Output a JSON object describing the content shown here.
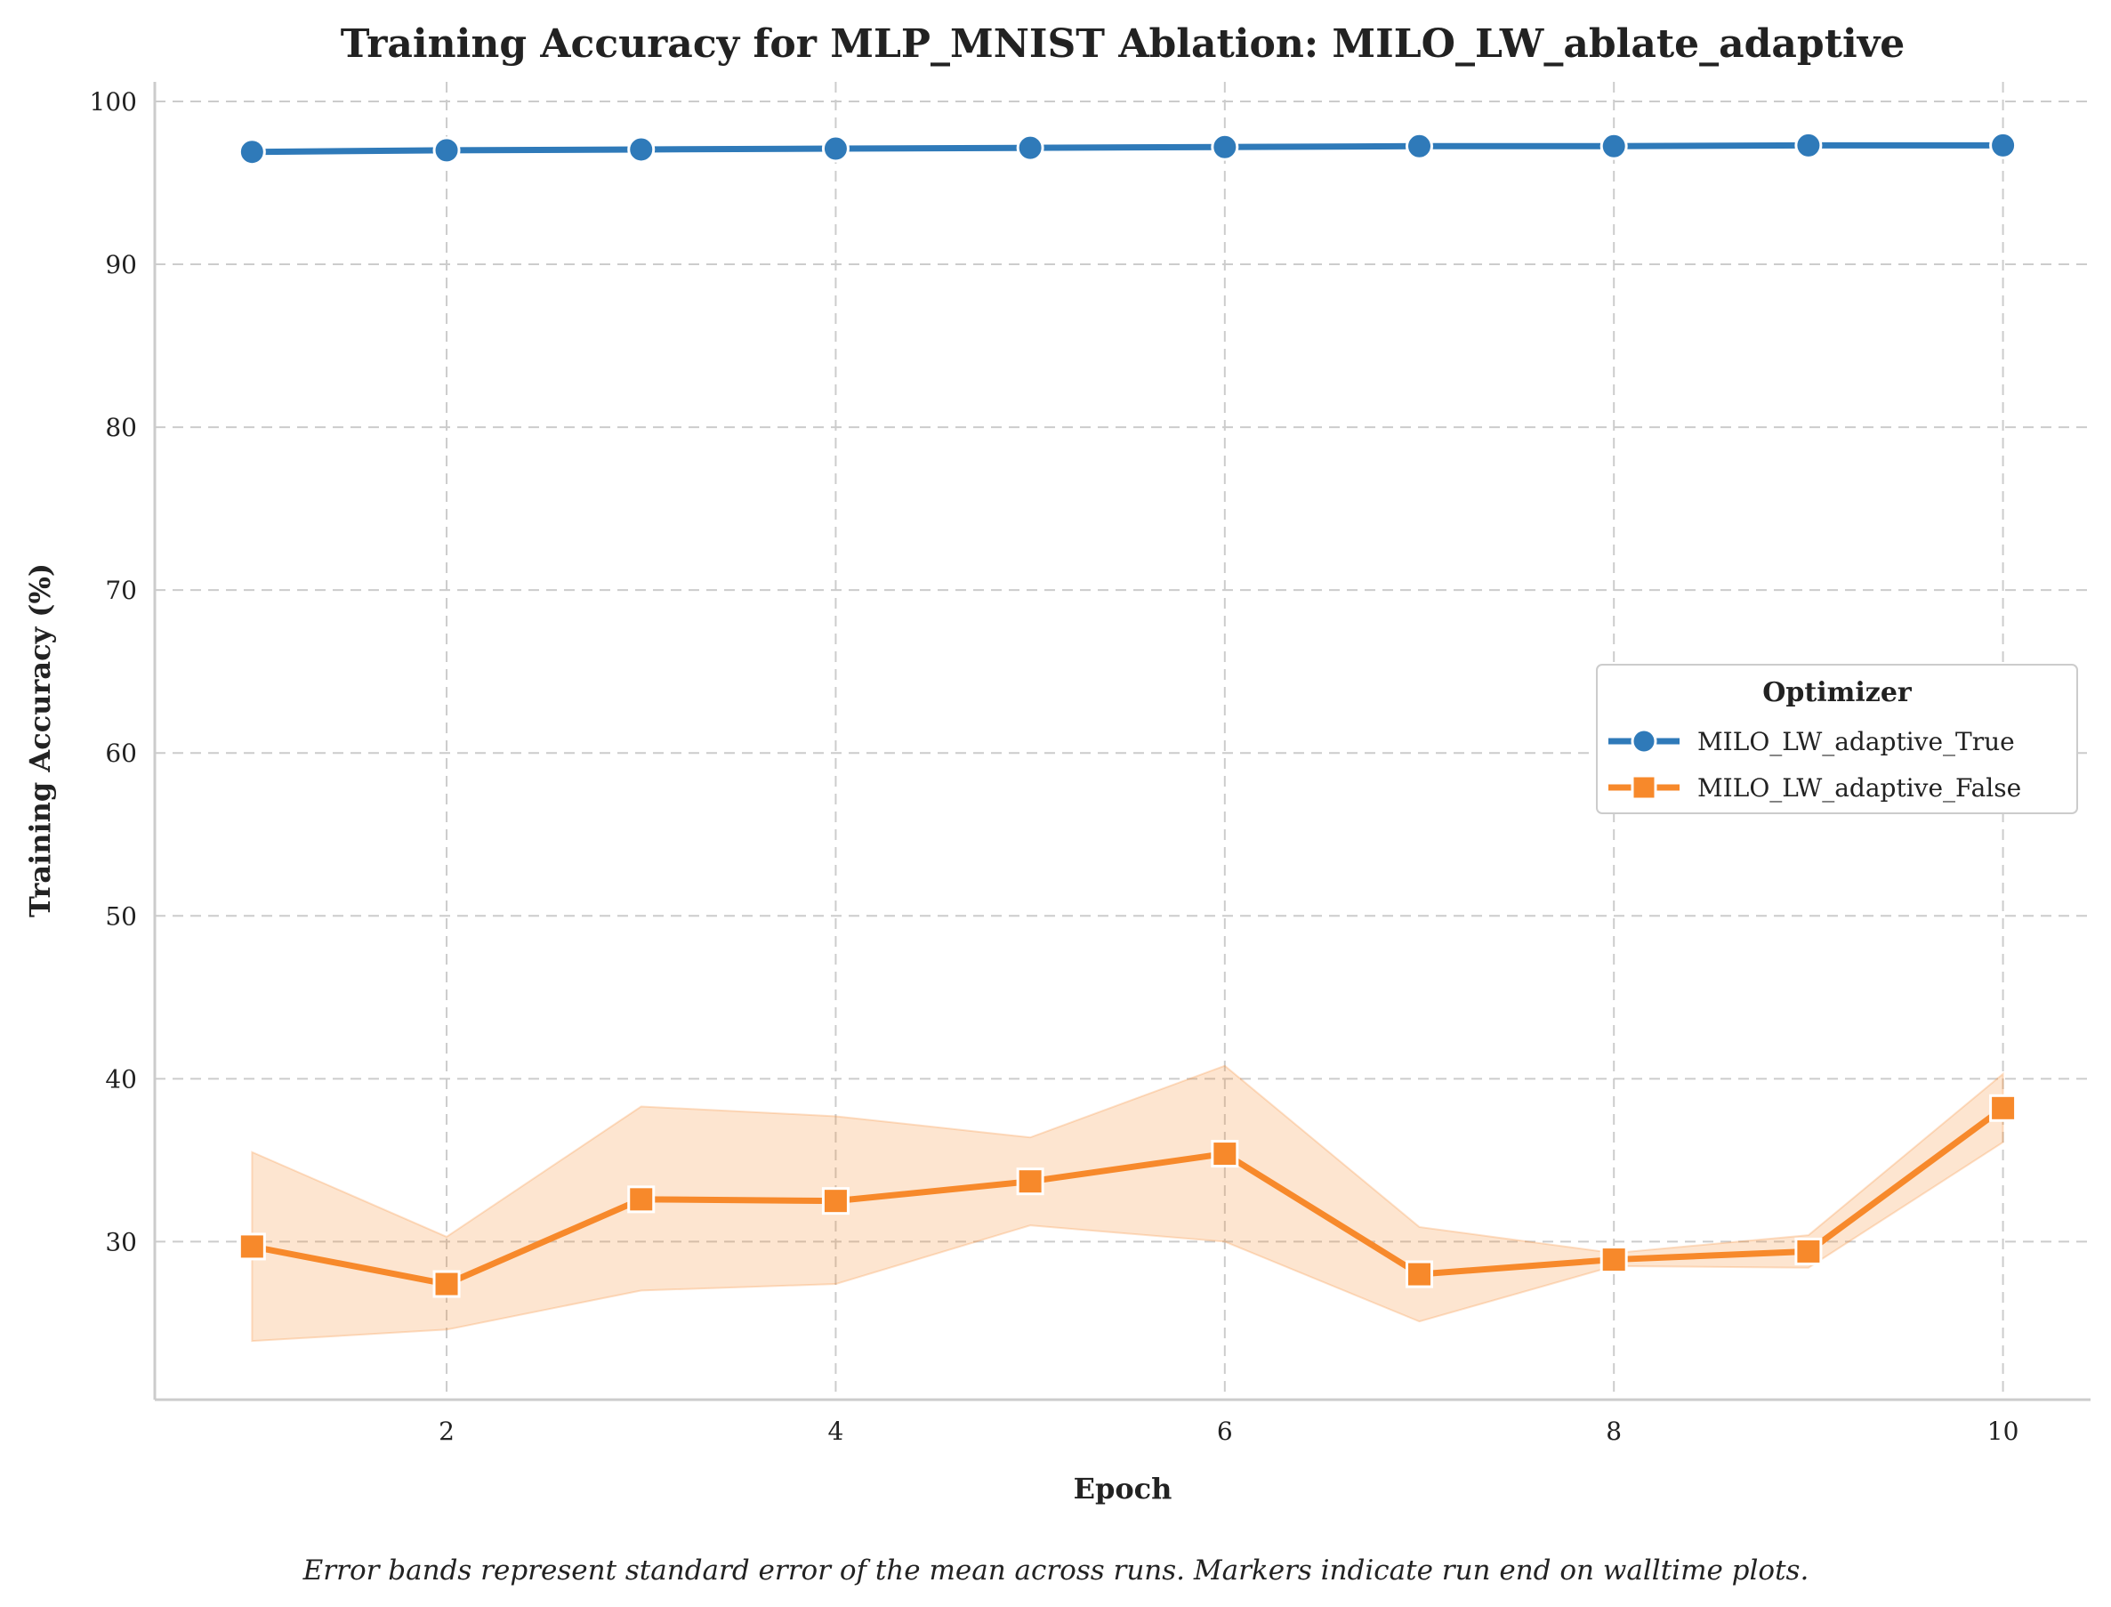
{
  "chart_data": {
    "type": "line",
    "title": "Training Accuracy for MLP_MNIST Ablation: MILO_LW_ablate_adaptive",
    "xlabel": "Epoch",
    "ylabel": "Training Accuracy (%)",
    "xlim": [
      0.5,
      10.45
    ],
    "ylim": [
      20.3,
      101.2
    ],
    "x_ticks": [
      2,
      4,
      6,
      8,
      10
    ],
    "y_ticks": [
      30,
      40,
      50,
      60,
      70,
      80,
      90,
      100
    ],
    "grid": true,
    "legend": {
      "title": "Optimizer",
      "placement": "center-right"
    },
    "x": [
      1,
      2,
      3,
      4,
      5,
      6,
      7,
      8,
      9,
      10
    ],
    "series": [
      {
        "name": "MILO_LW_adaptive_True",
        "color": "#2f7ab9",
        "marker": "circle",
        "values": [
          96.9,
          97.0,
          97.05,
          97.1,
          97.15,
          97.2,
          97.25,
          97.25,
          97.3,
          97.3
        ],
        "band_lower": [
          96.8,
          96.9,
          96.95,
          97.0,
          97.05,
          97.1,
          97.15,
          97.15,
          97.2,
          97.2
        ],
        "band_upper": [
          97.0,
          97.1,
          97.15,
          97.2,
          97.25,
          97.3,
          97.35,
          97.35,
          97.4,
          97.4
        ]
      },
      {
        "name": "MILO_LW_adaptive_False",
        "color": "#f7892b",
        "marker": "square",
        "values": [
          29.7,
          27.4,
          32.6,
          32.5,
          33.7,
          35.4,
          28.0,
          28.9,
          29.4,
          38.2
        ],
        "band_lower": [
          23.9,
          24.6,
          27.0,
          27.4,
          31.0,
          30.0,
          25.1,
          28.5,
          28.4,
          36.1
        ],
        "band_upper": [
          35.5,
          30.3,
          38.3,
          37.7,
          36.4,
          40.8,
          30.9,
          29.3,
          30.4,
          40.3
        ]
      }
    ],
    "caption": "Error bands represent standard error of the mean across runs. Markers indicate run end on walltime plots."
  }
}
